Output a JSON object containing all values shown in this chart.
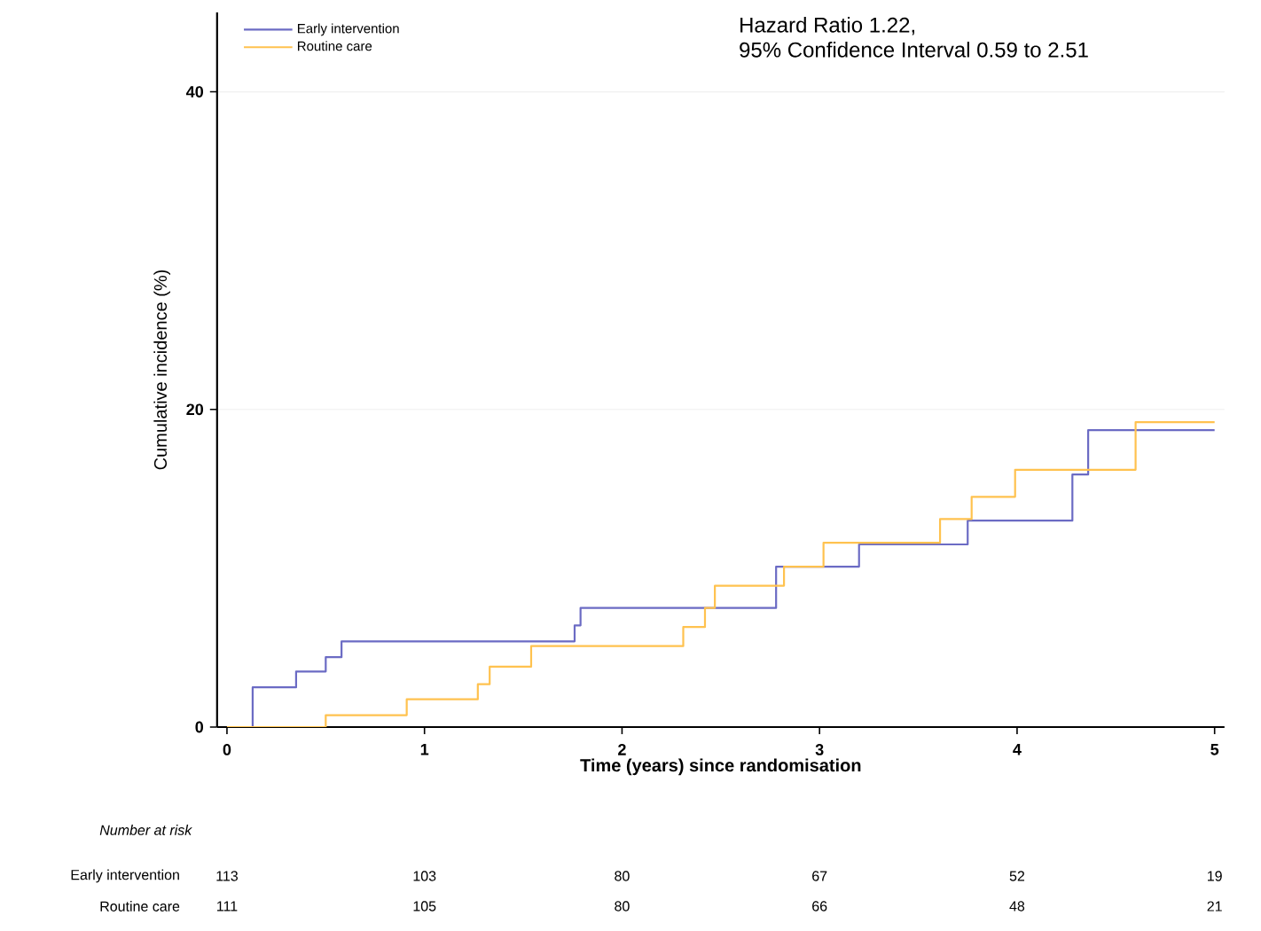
{
  "chart_data": {
    "type": "step",
    "xlabel": "Time (years) since randomisation",
    "ylabel": "Cumulative incidence (%)",
    "xlim": [
      -0.05,
      5.05
    ],
    "xticks": [
      0,
      1,
      2,
      3,
      4,
      5
    ],
    "ylim": [
      0,
      45
    ],
    "yticks": [
      0,
      20,
      40
    ],
    "grid": "y",
    "legend": "top left",
    "marker": "none",
    "line_style": "solid",
    "series": [
      {
        "name": "Early intervention",
        "color": "#6b6bc4",
        "x": [
          0,
          0.13,
          0.35,
          0.5,
          0.58,
          1.76,
          1.79,
          2.78,
          3.2,
          3.75,
          4.28,
          4.36,
          5.0
        ],
        "values": [
          0,
          2.5,
          3.5,
          4.4,
          5.4,
          6.4,
          7.5,
          10.1,
          11.5,
          13.0,
          15.9,
          18.7,
          18.7
        ]
      },
      {
        "name": "Routine care",
        "color": "#ffc24f",
        "x": [
          0,
          0.5,
          0.91,
          1.27,
          1.33,
          1.54,
          2.31,
          2.42,
          2.47,
          2.82,
          3.02,
          3.61,
          3.77,
          3.99,
          4.6,
          5.0
        ],
        "values": [
          0,
          0.75,
          1.75,
          2.7,
          3.8,
          5.1,
          6.3,
          7.5,
          8.9,
          10.1,
          11.6,
          13.1,
          14.5,
          16.2,
          19.2,
          19.2
        ]
      }
    ],
    "annotations": [
      "Hazard Ratio 1.22,",
      "95% Confidence Interval 0.59 to 2.51",
      "*Number at risk*",
      "Early intervention",
      "113",
      "103",
      "80",
      "67",
      "52",
      "19",
      "Routine care",
      "111",
      "105",
      "80",
      "66",
      "48",
      "21"
    ]
  }
}
